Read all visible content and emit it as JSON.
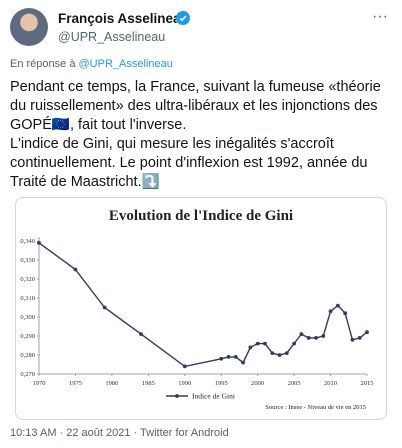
{
  "tweet": {
    "author_name": "François Asselineau",
    "author_handle": "@UPR_Asselineau",
    "reply_prefix": "En réponse à",
    "reply_to": "@UPR_Asselineau",
    "text": "Pendant ce temps, la France, suivant la fumeuse «théorie du ruissellement» des ultra-libéraux et les injonctions des GOPÉ🇪🇺, fait tout l'inverse.\nL'indice de Gini, qui mesure les inégalités s'accroît continuellement. Le point d'inflexion est 1992, année du Traité de Maastricht.⤵️",
    "footer": "10:13 AM · 22 août 2021 · Twitter for Android"
  },
  "chart_data": {
    "type": "line",
    "title": "Evolution de l'Indice de Gini",
    "source": "Source : Insee - Niveau de vie en 2015",
    "x": [
      1970,
      1975,
      1979,
      1984,
      1990,
      1995,
      1996,
      1997,
      1998,
      1999,
      2000,
      2001,
      2002,
      2003,
      2004,
      2005,
      2006,
      2007,
      2008,
      2009,
      2010,
      2011,
      2012,
      2013,
      2014,
      2015
    ],
    "series": [
      {
        "name": "Indice de Gini",
        "color": "#2f3b60",
        "values": [
          0.339,
          0.325,
          0.305,
          0.291,
          0.274,
          0.278,
          0.279,
          0.279,
          0.276,
          0.284,
          0.286,
          0.286,
          0.281,
          0.28,
          0.281,
          0.286,
          0.291,
          0.289,
          0.289,
          0.29,
          0.303,
          0.306,
          0.302,
          0.288,
          0.289,
          0.292
        ]
      }
    ],
    "xlim": [
      1970,
      2015
    ],
    "xticks": [
      1970,
      1975,
      1980,
      1985,
      1990,
      1995,
      2000,
      2005,
      2010,
      2015
    ],
    "ylim": [
      0.27,
      0.34
    ],
    "yticks": [
      {
        "value": 0.27,
        "label": "0,270"
      },
      {
        "value": 0.28,
        "label": "0,280"
      },
      {
        "value": 0.29,
        "label": "0,290"
      },
      {
        "value": 0.3,
        "label": "0,300"
      },
      {
        "value": 0.31,
        "label": "0,310"
      },
      {
        "value": 0.32,
        "label": "0,320"
      },
      {
        "value": 0.33,
        "label": "0,330"
      },
      {
        "value": 0.34,
        "label": "0,340"
      }
    ],
    "grid": false
  }
}
